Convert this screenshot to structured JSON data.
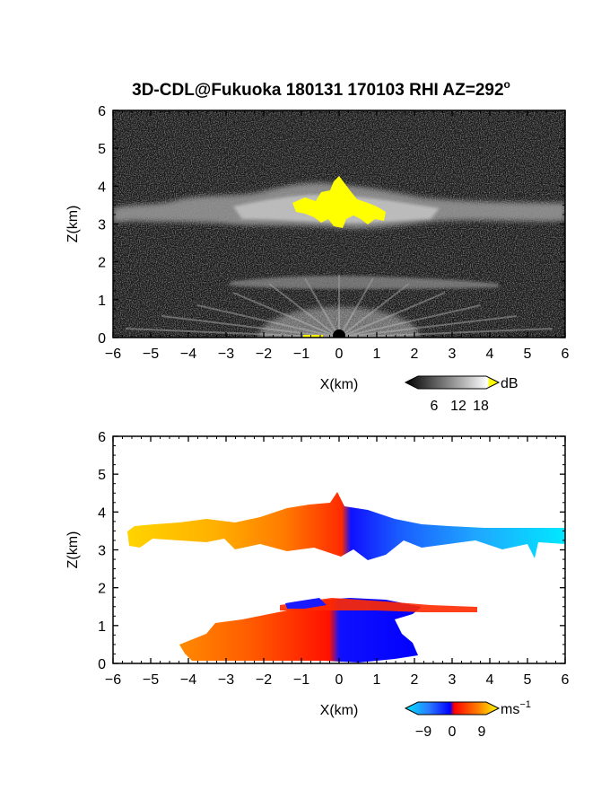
{
  "title": "3D-CDL@Fukuoka 180131 170103 RHI AZ=292",
  "title_superscript": "o",
  "chart_data": [
    {
      "type": "heatmap",
      "name": "reflectivity-panel",
      "xlabel": "X(km)",
      "ylabel": "Z(km)",
      "xlim": [
        -6,
        6
      ],
      "ylim": [
        0,
        6
      ],
      "x_ticks": [
        "-6",
        "-5",
        "-4",
        "-3",
        "-2",
        "-1",
        "0",
        "1",
        "2",
        "3",
        "4",
        "5",
        "6"
      ],
      "y_ticks": [
        "0",
        "1",
        "2",
        "3",
        "4",
        "5",
        "6"
      ],
      "colorbar": {
        "unit": "dB",
        "ticks": [
          "6",
          "12",
          "18"
        ],
        "colors": [
          "#000000",
          "#ffffff",
          "#ffff00"
        ]
      },
      "features": [
        {
          "kind": "cloud-layer",
          "z_bottom": 2.9,
          "z_top": 3.7,
          "x_range": [
            -6,
            6
          ]
        },
        {
          "kind": "strong-echo",
          "x_range": [
            -1.2,
            1.3
          ],
          "z_range": [
            2.8,
            4.2
          ]
        },
        {
          "kind": "weak-layer",
          "z": 1.45,
          "x_range": [
            -2.5,
            4.2
          ]
        },
        {
          "kind": "near-ground-fan",
          "x_range": [
            -6,
            6
          ],
          "z_range": [
            0,
            1.5
          ]
        }
      ]
    },
    {
      "type": "heatmap",
      "name": "doppler-velocity-panel",
      "xlabel": "X(km)",
      "ylabel": "Z(km)",
      "xlim": [
        -6,
        6
      ],
      "ylim": [
        0,
        6
      ],
      "x_ticks": [
        "-6",
        "-5",
        "-4",
        "-3",
        "-2",
        "-1",
        "0",
        "1",
        "2",
        "3",
        "4",
        "5",
        "6"
      ],
      "y_ticks": [
        "0",
        "1",
        "2",
        "3",
        "4",
        "5",
        "6"
      ],
      "colorbar": {
        "unit": "ms",
        "unit_superscript": "−1",
        "ticks": [
          "−9",
          "0",
          "9"
        ],
        "colors": [
          "#00e5ff",
          "#0000ff",
          "#ff0000",
          "#ffff00"
        ]
      },
      "features": [
        {
          "kind": "cloud-layer",
          "z_bottom": 2.9,
          "z_top": 3.9,
          "x_range": [
            -5.8,
            6
          ],
          "velocity_left": 9,
          "velocity_right": -9
        },
        {
          "kind": "low-layer",
          "z_bottom": 0,
          "z_top": 1.6,
          "x_range": [
            -3.8,
            2.6
          ]
        }
      ]
    }
  ]
}
